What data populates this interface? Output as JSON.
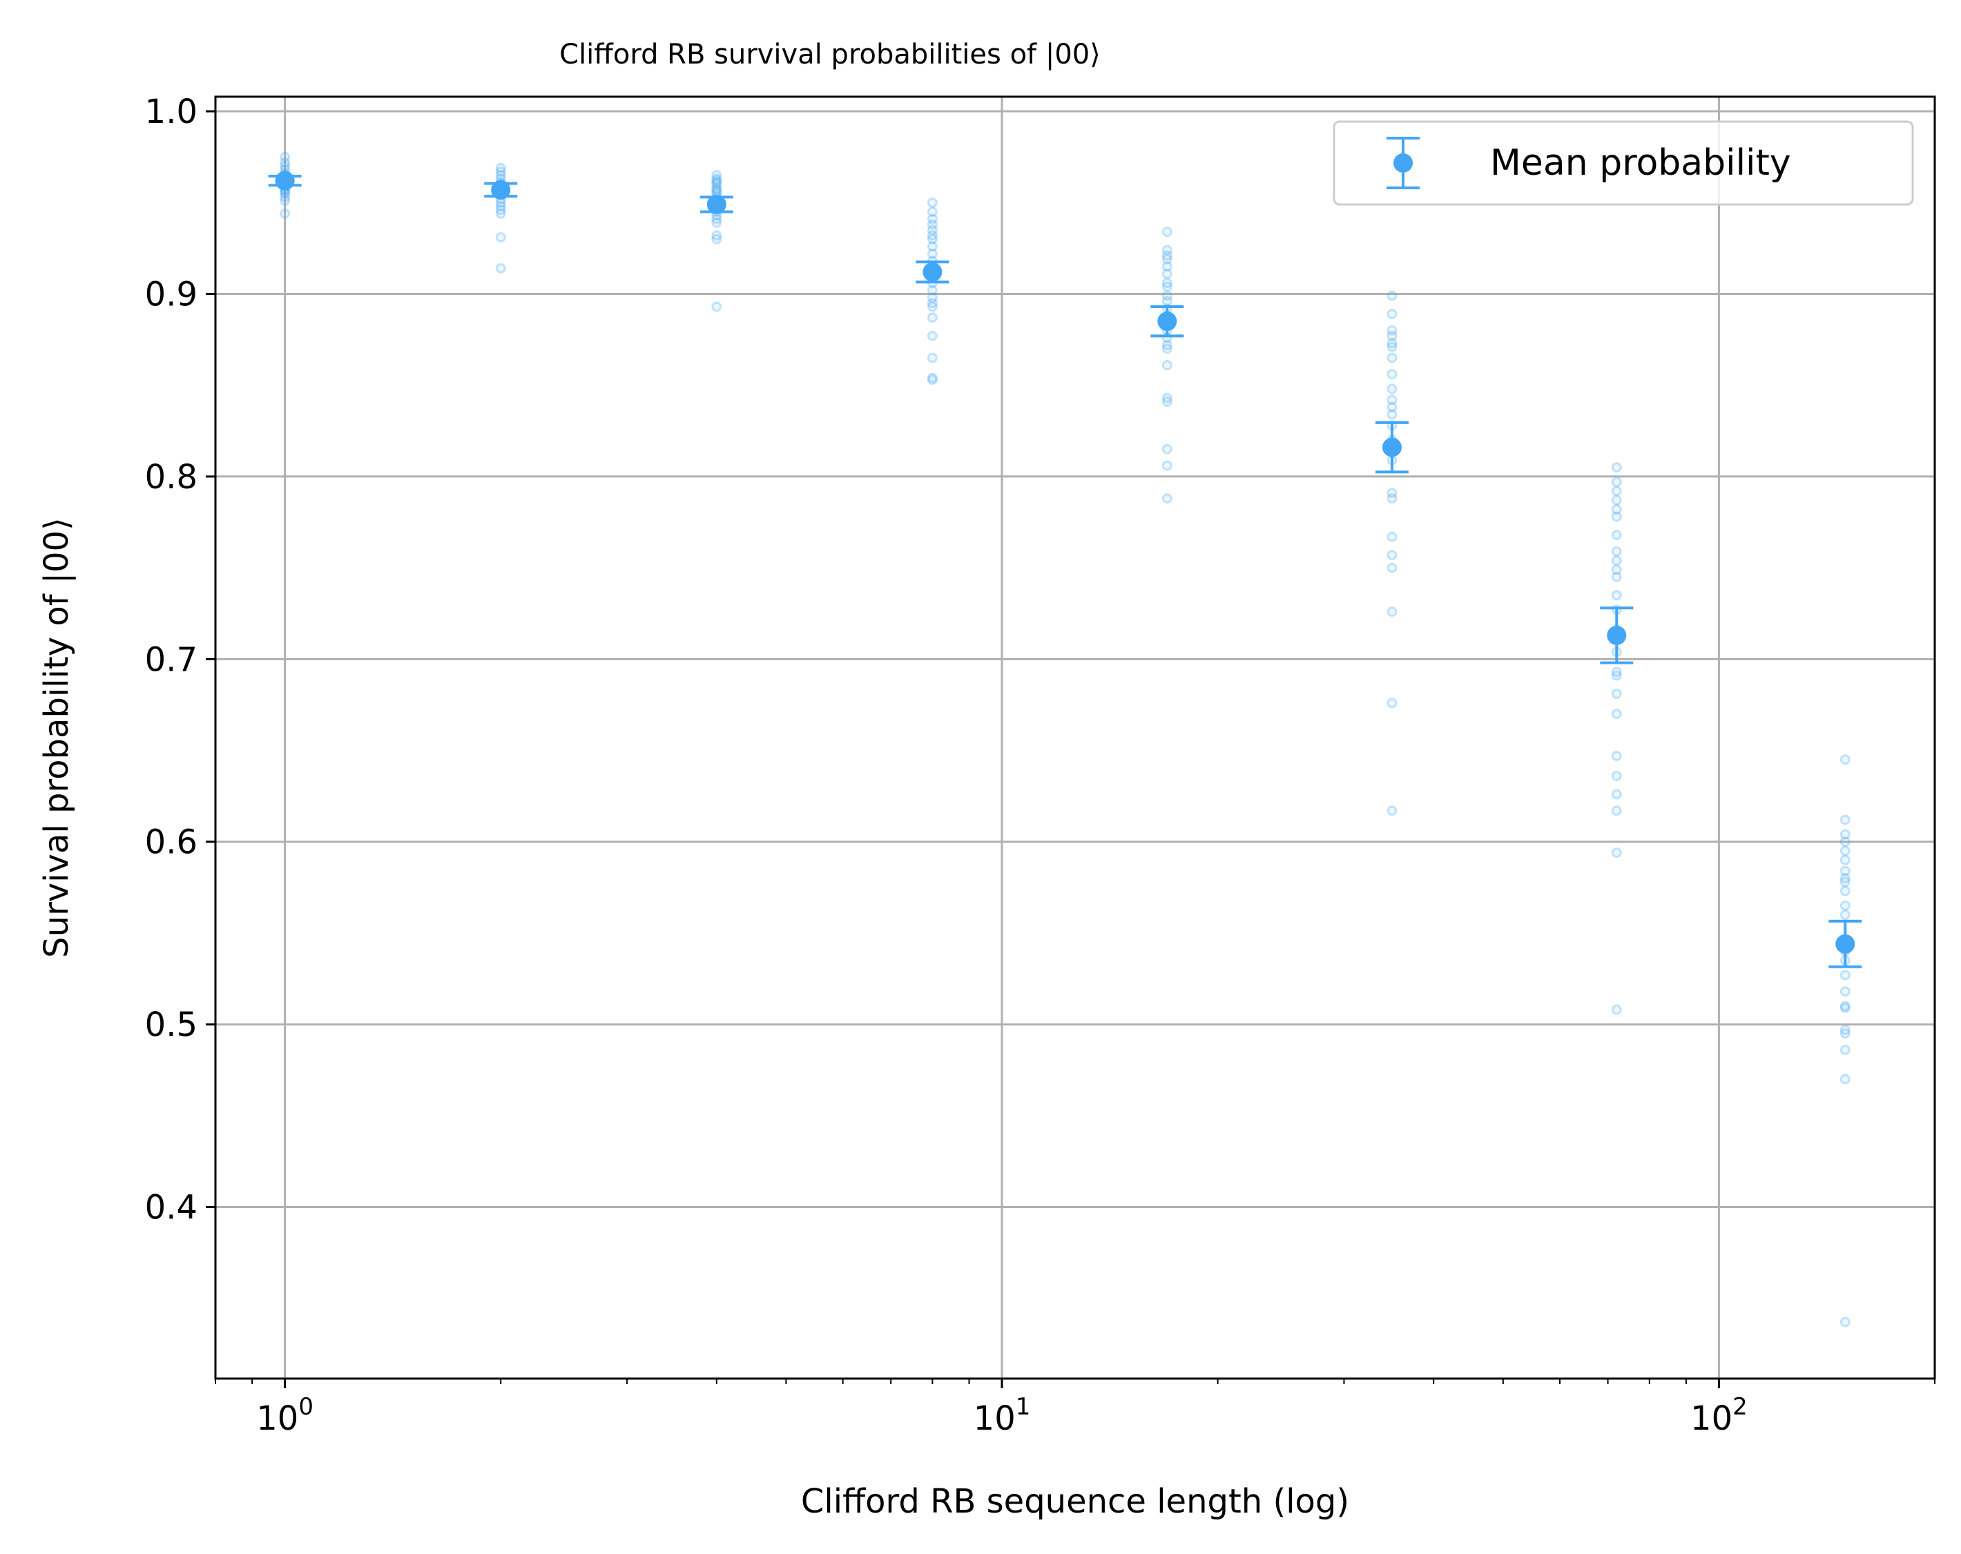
{
  "chart_data": {
    "type": "scatter",
    "title": "Clifford RB survival probabilities of |00⟩",
    "xlabel": "Clifford RB sequence length (log)",
    "ylabel": "Survival probability of |00⟩",
    "xscale": "log",
    "xlim": [
      0.8,
      200
    ],
    "ylim": [
      0.306,
      1.008
    ],
    "x_ticks": [
      {
        "value": 1,
        "base": "10",
        "exp": "0"
      },
      {
        "value": 10,
        "base": "10",
        "exp": "1"
      },
      {
        "value": 100,
        "base": "10",
        "exp": "2"
      }
    ],
    "y_ticks": [
      {
        "value": 0.4,
        "label": "0.4"
      },
      {
        "value": 0.5,
        "label": "0.5"
      },
      {
        "value": 0.6,
        "label": "0.6"
      },
      {
        "value": 0.7,
        "label": "0.7"
      },
      {
        "value": 0.8,
        "label": "0.8"
      },
      {
        "value": 0.9,
        "label": "0.9"
      },
      {
        "value": 1.0,
        "label": "1.0"
      }
    ],
    "grid": true,
    "legend": {
      "position": "top-right",
      "label": "Mean probability"
    },
    "color": "#42a5f5",
    "series": [
      {
        "name": "Mean probability",
        "x": [
          1,
          2,
          4,
          8,
          17,
          35,
          72,
          150
        ],
        "y": [
          0.962,
          0.957,
          0.949,
          0.912,
          0.885,
          0.816,
          0.713,
          0.544
        ],
        "yerr": [
          0.0025,
          0.0035,
          0.004,
          0.0055,
          0.008,
          0.0135,
          0.015,
          0.0125
        ]
      }
    ],
    "samples": [
      {
        "x": 1,
        "y": [
          0.975,
          0.972,
          0.97,
          0.968,
          0.966,
          0.965,
          0.964,
          0.963,
          0.962,
          0.961,
          0.96,
          0.959,
          0.958,
          0.957,
          0.956,
          0.955,
          0.953,
          0.951,
          0.944
        ]
      },
      {
        "x": 2,
        "y": [
          0.969,
          0.967,
          0.965,
          0.963,
          0.961,
          0.96,
          0.959,
          0.958,
          0.957,
          0.956,
          0.955,
          0.954,
          0.952,
          0.95,
          0.948,
          0.946,
          0.944,
          0.931,
          0.914
        ]
      },
      {
        "x": 4,
        "y": [
          0.965,
          0.963,
          0.962,
          0.961,
          0.96,
          0.958,
          0.957,
          0.956,
          0.955,
          0.953,
          0.951,
          0.949,
          0.947,
          0.945,
          0.943,
          0.941,
          0.939,
          0.932,
          0.93,
          0.893
        ]
      },
      {
        "x": 8,
        "y": [
          0.95,
          0.945,
          0.941,
          0.938,
          0.935,
          0.932,
          0.93,
          0.926,
          0.922,
          0.918,
          0.914,
          0.91,
          0.906,
          0.902,
          0.898,
          0.895,
          0.893,
          0.887,
          0.877,
          0.865,
          0.854,
          0.853
        ]
      },
      {
        "x": 17,
        "y": [
          0.934,
          0.924,
          0.921,
          0.919,
          0.915,
          0.911,
          0.906,
          0.904,
          0.899,
          0.896,
          0.892,
          0.888,
          0.884,
          0.88,
          0.876,
          0.872,
          0.87,
          0.861,
          0.843,
          0.841,
          0.815,
          0.806,
          0.788
        ]
      },
      {
        "x": 35,
        "y": [
          0.899,
          0.889,
          0.88,
          0.877,
          0.873,
          0.871,
          0.865,
          0.856,
          0.848,
          0.842,
          0.838,
          0.834,
          0.828,
          0.82,
          0.809,
          0.791,
          0.788,
          0.767,
          0.757,
          0.75,
          0.726,
          0.676,
          0.617
        ]
      },
      {
        "x": 72,
        "y": [
          0.805,
          0.797,
          0.792,
          0.787,
          0.782,
          0.778,
          0.768,
          0.759,
          0.754,
          0.749,
          0.745,
          0.735,
          0.727,
          0.716,
          0.704,
          0.693,
          0.691,
          0.681,
          0.67,
          0.647,
          0.636,
          0.626,
          0.617,
          0.594,
          0.508
        ]
      },
      {
        "x": 150,
        "y": [
          0.645,
          0.612,
          0.604,
          0.6,
          0.595,
          0.59,
          0.584,
          0.58,
          0.578,
          0.573,
          0.565,
          0.56,
          0.545,
          0.54,
          0.535,
          0.527,
          0.518,
          0.51,
          0.509,
          0.497,
          0.495,
          0.486,
          0.47,
          0.337
        ]
      }
    ]
  }
}
